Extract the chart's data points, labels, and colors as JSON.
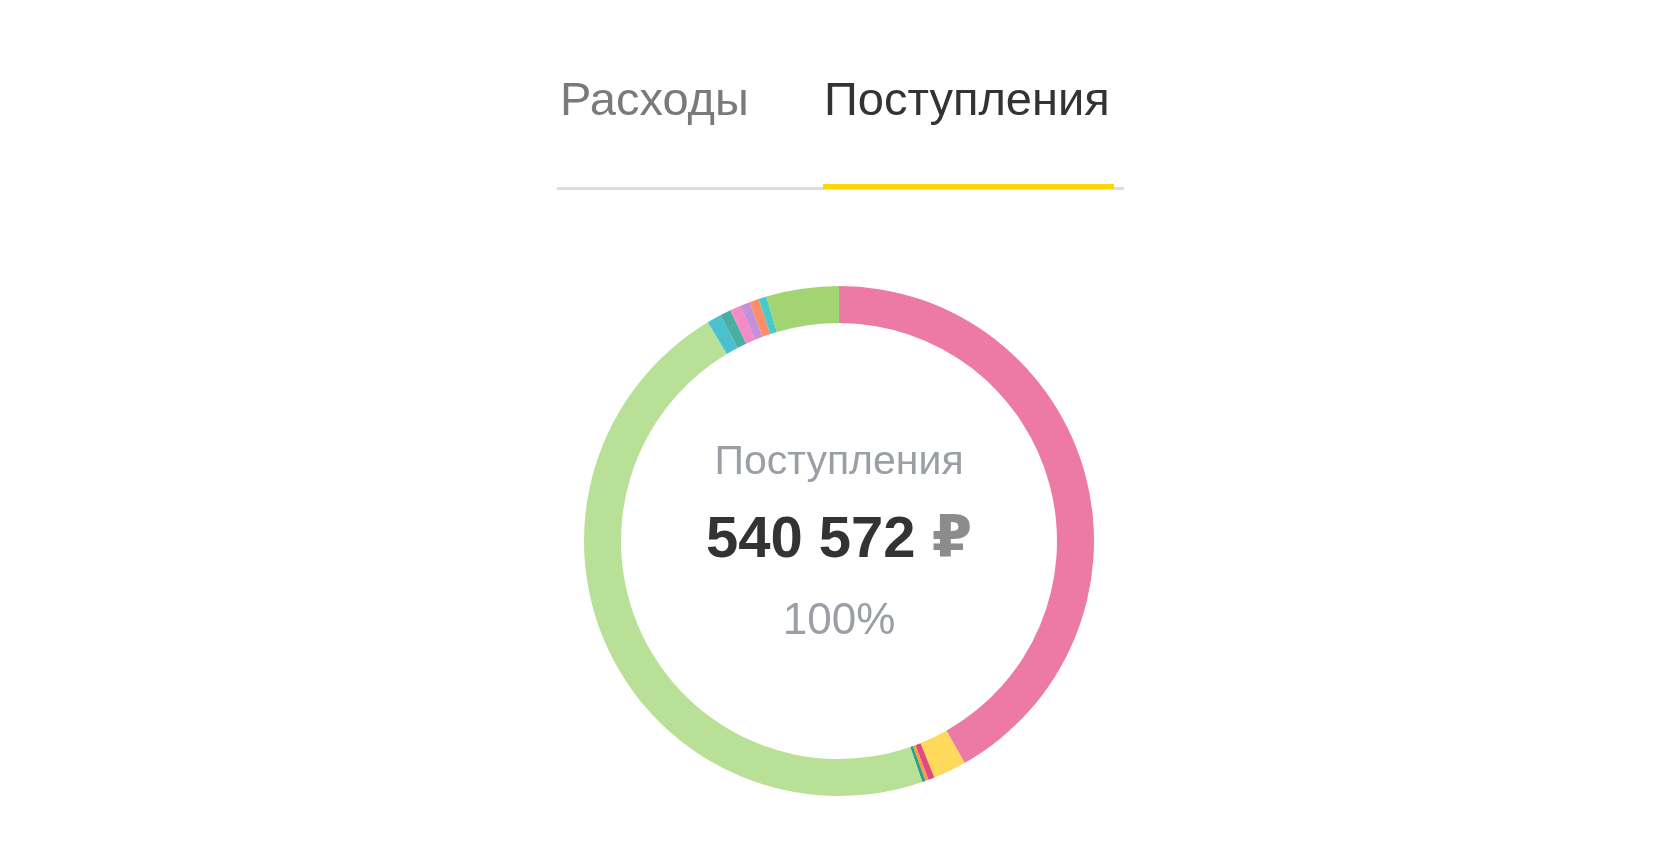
{
  "chart_data": {
    "type": "donut",
    "title": "Поступления",
    "annotations": [
      "Расходы",
      "Поступления",
      "540 572 ₽",
      "100%"
    ],
    "categories": [
      null,
      null,
      null,
      null,
      null,
      null,
      null,
      null,
      null,
      null,
      null,
      null,
      null
    ],
    "values": [
      41.8,
      2.1,
      0.4,
      0.2,
      0.2,
      46.7,
      0.9,
      0.7,
      0.7,
      0.6,
      0.6,
      0.5,
      4.6
    ],
    "colors": [
      "#ec7aa4",
      "#ffd95c",
      "#e14a7f",
      "#f5a03a",
      "#2a9d8f",
      "#b8e096",
      "#4bc0cf",
      "#4aaea3",
      "#f58bc4",
      "#c58fd9",
      "#fb8f6c",
      "#45cbc8",
      "#a2d572"
    ]
  }
}
